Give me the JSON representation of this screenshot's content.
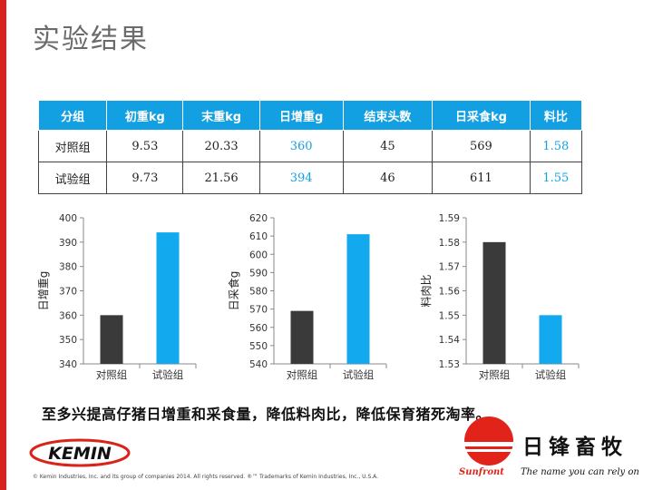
{
  "slide": {
    "title": "实验结果",
    "accent_color": "#d9241b"
  },
  "table": {
    "headers": [
      "分组",
      "初重kg",
      "末重kg",
      "日增重g",
      "结束头数",
      "日采食kg",
      "料比"
    ],
    "rows": [
      [
        "对照组",
        "9.53",
        "20.33",
        "360",
        "45",
        "569",
        "1.58"
      ],
      [
        "试验组",
        "9.73",
        "21.56",
        "394",
        "46",
        "611",
        "1.55"
      ]
    ],
    "header_color": "#13a0e2",
    "highlight_color": "#13a0e2"
  },
  "chart_data": [
    {
      "type": "bar",
      "title": "",
      "xlabel": "",
      "ylabel": "日增重g",
      "categories": [
        "对照组",
        "试验组"
      ],
      "values": [
        360,
        394
      ],
      "ylim": [
        340,
        400
      ],
      "yticks": [
        340,
        350,
        360,
        370,
        380,
        390,
        400
      ],
      "ytick_labels": [
        "340",
        "350",
        "360",
        "370",
        "380",
        "390",
        "400"
      ],
      "colors": [
        "#3a3a3a",
        "#13a9ee"
      ]
    },
    {
      "type": "bar",
      "title": "",
      "xlabel": "",
      "ylabel": "日采食g",
      "categories": [
        "对照组",
        "试验组"
      ],
      "values": [
        569,
        611
      ],
      "ylim": [
        540,
        620
      ],
      "yticks": [
        540,
        550,
        560,
        570,
        580,
        590,
        600,
        610,
        620
      ],
      "ytick_labels": [
        "540",
        "550",
        "560",
        "570",
        "580",
        "590",
        "600",
        "610",
        "620"
      ],
      "colors": [
        "#3a3a3a",
        "#13a9ee"
      ]
    },
    {
      "type": "bar",
      "title": "",
      "xlabel": "",
      "ylabel": "料肉比",
      "categories": [
        "对照组",
        "试验组"
      ],
      "values": [
        1.58,
        1.55
      ],
      "ylim": [
        1.53,
        1.59
      ],
      "yticks": [
        1.53,
        1.54,
        1.55,
        1.56,
        1.57,
        1.58,
        1.59
      ],
      "ytick_labels": [
        "1.53",
        "1.54",
        "1.55",
        "1.56",
        "1.57",
        "1.58",
        "1.59"
      ],
      "colors": [
        "#3a3a3a",
        "#13a9ee"
      ]
    }
  ],
  "conclusion": "至多兴提高仔猪日增重和采食量，降低料肉比，降低保育猪死淘率。",
  "footer": {
    "kemin_logo": "KEMIN",
    "copyright": "© Kemin Industries, Inc. and its group of companies 2014. All rights reserved. ®™ Trademarks of Kemin Industries, Inc., U.S.A.",
    "brand_cn": "日锋畜牧",
    "brand_en": "Sunfront",
    "slogan": "The name you can rely on",
    "brand_color": "#e2231a"
  }
}
